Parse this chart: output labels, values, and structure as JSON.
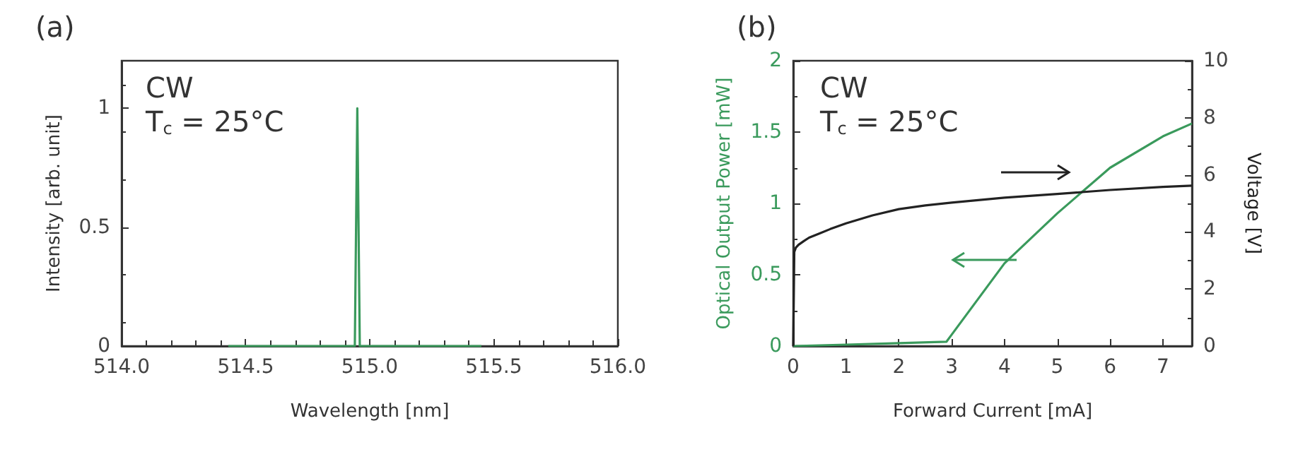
{
  "chart_data": [
    {
      "type": "line",
      "title": "(a)",
      "xlabel": "Wavelength [nm]",
      "ylabel": "Intensity [arb. unit]",
      "annotations": [
        "CW",
        "T$_{c}$ = 25°C"
      ],
      "marker": "none",
      "grid": false,
      "xlim": [
        514,
        516
      ],
      "xticks": [
        {
          "value": 514,
          "label": "514.0"
        },
        514.5,
        {
          "value": 515,
          "label": "515.0"
        },
        515.5,
        {
          "value": 516,
          "label": "516.0"
        }
      ],
      "ylim": [
        0,
        1.2
      ],
      "yticks": [
        0,
        0.5,
        1
      ],
      "series": [
        {
          "color": "#3a9a5c",
          "x": [
            514.43,
            514.7,
            514.94,
            514.95,
            514.96,
            515.2,
            515.45
          ],
          "values": [
            0,
            0,
            0,
            1,
            0,
            0,
            0
          ]
        }
      ]
    },
    {
      "type": "line",
      "title": "(b)",
      "xlabel": "Forward Current [mA]",
      "ylabel": "Optical Output Power [mW]",
      "y2label": "Voltage [V]",
      "annotations": [
        "CW",
        "T$_{c}$ = 25°C"
      ],
      "marker": "none",
      "grid": false,
      "xlim": [
        0,
        7.55
      ],
      "xticks": [
        0,
        1,
        2,
        3,
        4,
        5,
        6,
        7
      ],
      "ylim": [
        0,
        2
      ],
      "yticks": [
        0,
        0.5,
        1,
        1.5,
        2
      ],
      "y2lim": [
        0,
        10
      ],
      "y2ticks": [
        0,
        2,
        4,
        6,
        8,
        10
      ],
      "series": [
        {
          "color": "#3a9a5c",
          "x": [
            0,
            1,
            2,
            2.9,
            3,
            4,
            5,
            6,
            7,
            7.55
          ],
          "values": [
            0,
            0.01,
            0.02,
            0.03,
            0.08,
            0.58,
            0.93,
            1.25,
            1.47,
            1.56
          ]
        },
        {
          "color": "#222222",
          "axis": "y2",
          "x": [
            0,
            0.02,
            0.05,
            0.1,
            0.2,
            0.3,
            0.5,
            0.7,
            1,
            1.5,
            2,
            2.5,
            3,
            4,
            5,
            6,
            7,
            7.55
          ],
          "values": [
            0,
            3.3,
            3.45,
            3.55,
            3.68,
            3.8,
            3.95,
            4.1,
            4.3,
            4.58,
            4.8,
            4.93,
            5.03,
            5.2,
            5.33,
            5.47,
            5.58,
            5.62
          ]
        }
      ]
    }
  ]
}
